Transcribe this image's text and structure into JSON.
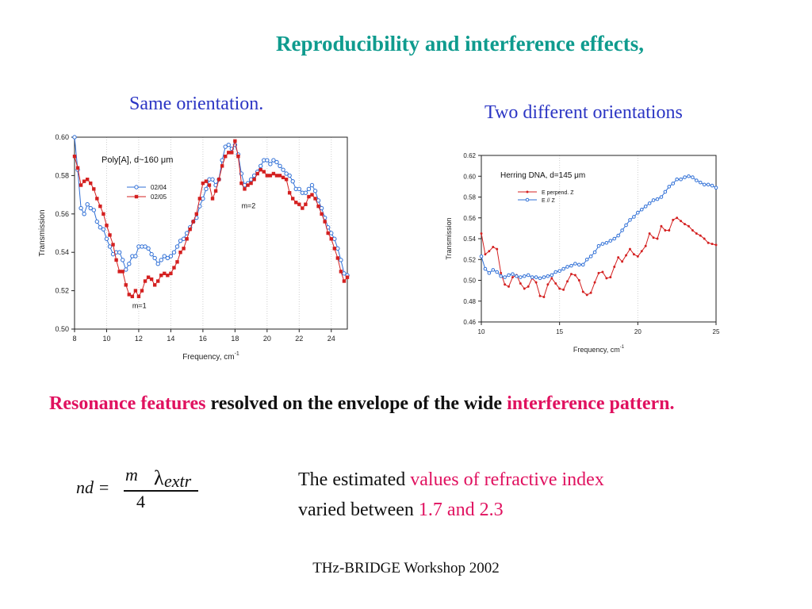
{
  "slide": {
    "title": "Reproducibility and interference effects,",
    "subtitle_left": "Same orientation.",
    "subtitle_right": "Two different orientations",
    "statement": {
      "part1": "Resonance features",
      "part2": " resolved on the envelope of the wide ",
      "part3": "interference pattern."
    },
    "formula": {
      "lhs": "nd =",
      "m": "m",
      "lambda": "λ",
      "sub": "extr",
      "den": "4"
    },
    "note": {
      "line1_a": "The estimated ",
      "line1_b": "values of refractive index",
      "line2_a": "varied between ",
      "line2_b": "1.7 and 2.3"
    },
    "footer": "THz-BRIDGE Workshop 2002",
    "colors": {
      "title": "#0f9b8e",
      "subtitle": "#2b35c4",
      "highlight": "#e0115f",
      "blue_series": "#2f6fd6",
      "red_series": "#d42020"
    }
  },
  "chart_data": [
    {
      "type": "line",
      "title": "Poly[A], d~160 μm",
      "xlabel": "Frequency, cm",
      "xlabel_sup": "-1",
      "ylabel": "Transmission",
      "xlim": [
        8,
        25
      ],
      "ylim": [
        0.5,
        0.6
      ],
      "xticks": [
        8,
        10,
        12,
        14,
        16,
        18,
        20,
        22,
        24
      ],
      "yticks": [
        0.5,
        0.52,
        0.54,
        0.56,
        0.58,
        0.6
      ],
      "grid": "vertical dotted",
      "legend": "upper-left",
      "annotations": [
        {
          "text": "m=1",
          "x": 11.6,
          "y": 0.511
        },
        {
          "text": "m=2",
          "x": 18.4,
          "y": 0.563
        }
      ],
      "series": [
        {
          "name": "02/04",
          "color": "#2f6fd6",
          "marker": "circle",
          "x": [
            8.0,
            8.2,
            8.4,
            8.6,
            8.8,
            9.0,
            9.2,
            9.4,
            9.6,
            9.8,
            10.0,
            10.2,
            10.4,
            10.6,
            10.8,
            11.0,
            11.2,
            11.4,
            11.6,
            11.8,
            12.0,
            12.2,
            12.4,
            12.6,
            12.8,
            13.0,
            13.2,
            13.4,
            13.6,
            13.8,
            14.0,
            14.2,
            14.4,
            14.6,
            14.8,
            15.0,
            15.2,
            15.4,
            15.6,
            15.8,
            16.0,
            16.2,
            16.4,
            16.6,
            16.8,
            17.0,
            17.2,
            17.4,
            17.6,
            17.8,
            18.0,
            18.2,
            18.4,
            18.6,
            18.8,
            19.0,
            19.2,
            19.4,
            19.6,
            19.8,
            20.0,
            20.2,
            20.4,
            20.6,
            20.8,
            21.0,
            21.2,
            21.4,
            21.6,
            21.8,
            22.0,
            22.2,
            22.4,
            22.6,
            22.8,
            23.0,
            23.2,
            23.4,
            23.6,
            23.8,
            24.0,
            24.2,
            24.4,
            24.6,
            24.8,
            25.0
          ],
          "y": [
            0.6,
            0.583,
            0.563,
            0.56,
            0.565,
            0.563,
            0.562,
            0.556,
            0.553,
            0.552,
            0.547,
            0.543,
            0.539,
            0.54,
            0.54,
            0.536,
            0.531,
            0.534,
            0.538,
            0.538,
            0.543,
            0.543,
            0.543,
            0.542,
            0.539,
            0.537,
            0.534,
            0.536,
            0.538,
            0.537,
            0.538,
            0.54,
            0.543,
            0.546,
            0.547,
            0.55,
            0.553,
            0.556,
            0.558,
            0.564,
            0.568,
            0.573,
            0.578,
            0.578,
            0.575,
            0.578,
            0.588,
            0.595,
            0.596,
            0.594,
            0.596,
            0.591,
            0.581,
            0.575,
            0.576,
            0.578,
            0.58,
            0.582,
            0.585,
            0.588,
            0.588,
            0.586,
            0.588,
            0.587,
            0.585,
            0.583,
            0.581,
            0.58,
            0.577,
            0.573,
            0.573,
            0.571,
            0.571,
            0.573,
            0.575,
            0.572,
            0.567,
            0.563,
            0.558,
            0.553,
            0.55,
            0.547,
            0.542,
            0.536,
            0.529,
            0.528
          ]
        },
        {
          "name": "02/05",
          "color": "#d42020",
          "marker": "square",
          "x": [
            8.0,
            8.2,
            8.4,
            8.6,
            8.8,
            9.0,
            9.2,
            9.4,
            9.6,
            9.8,
            10.0,
            10.2,
            10.4,
            10.6,
            10.8,
            11.0,
            11.2,
            11.4,
            11.6,
            11.8,
            12.0,
            12.2,
            12.4,
            12.6,
            12.8,
            13.0,
            13.2,
            13.4,
            13.6,
            13.8,
            14.0,
            14.2,
            14.4,
            14.6,
            14.8,
            15.0,
            15.2,
            15.4,
            15.6,
            15.8,
            16.0,
            16.2,
            16.4,
            16.6,
            16.8,
            17.0,
            17.2,
            17.4,
            17.6,
            17.8,
            18.0,
            18.2,
            18.4,
            18.6,
            18.8,
            19.0,
            19.2,
            19.4,
            19.6,
            19.8,
            20.0,
            20.2,
            20.4,
            20.6,
            20.8,
            21.0,
            21.2,
            21.4,
            21.6,
            21.8,
            22.0,
            22.2,
            22.4,
            22.6,
            22.8,
            23.0,
            23.2,
            23.4,
            23.6,
            23.8,
            24.0,
            24.2,
            24.4,
            24.6,
            24.8,
            25.0
          ],
          "y": [
            0.59,
            0.584,
            0.575,
            0.577,
            0.578,
            0.576,
            0.573,
            0.568,
            0.564,
            0.56,
            0.554,
            0.549,
            0.544,
            0.536,
            0.53,
            0.53,
            0.523,
            0.518,
            0.517,
            0.52,
            0.517,
            0.52,
            0.525,
            0.527,
            0.526,
            0.523,
            0.525,
            0.528,
            0.529,
            0.528,
            0.529,
            0.532,
            0.535,
            0.54,
            0.542,
            0.547,
            0.552,
            0.556,
            0.56,
            0.568,
            0.576,
            0.577,
            0.575,
            0.568,
            0.572,
            0.578,
            0.585,
            0.59,
            0.592,
            0.592,
            0.598,
            0.59,
            0.576,
            0.573,
            0.575,
            0.576,
            0.578,
            0.581,
            0.583,
            0.582,
            0.58,
            0.58,
            0.581,
            0.58,
            0.58,
            0.579,
            0.578,
            0.571,
            0.568,
            0.566,
            0.565,
            0.563,
            0.565,
            0.569,
            0.57,
            0.568,
            0.564,
            0.56,
            0.556,
            0.55,
            0.547,
            0.542,
            0.537,
            0.53,
            0.525,
            0.527
          ]
        }
      ]
    },
    {
      "type": "line",
      "title": "Herring DNA, d=145 μm",
      "xlabel": "Frequency, cm",
      "xlabel_sup": "-1",
      "ylabel": "Transmission",
      "xlim": [
        10,
        25
      ],
      "ylim": [
        0.46,
        0.62
      ],
      "xticks": [
        10,
        15,
        20,
        25
      ],
      "yticks": [
        0.46,
        0.48,
        0.5,
        0.52,
        0.54,
        0.56,
        0.58,
        0.6,
        0.62
      ],
      "grid": "vertical dotted",
      "legend": "upper-left",
      "series": [
        {
          "name": "E perpend. Z",
          "color": "#d42020",
          "marker": "dot",
          "x": [
            10.0,
            10.25,
            10.5,
            10.75,
            11.0,
            11.25,
            11.5,
            11.75,
            12.0,
            12.25,
            12.5,
            12.75,
            13.0,
            13.25,
            13.5,
            13.75,
            14.0,
            14.25,
            14.5,
            14.75,
            15.0,
            15.25,
            15.5,
            15.75,
            16.0,
            16.25,
            16.5,
            16.75,
            17.0,
            17.25,
            17.5,
            17.75,
            18.0,
            18.25,
            18.5,
            18.75,
            19.0,
            19.25,
            19.5,
            19.75,
            20.0,
            20.25,
            20.5,
            20.75,
            21.0,
            21.25,
            21.5,
            21.75,
            22.0,
            22.25,
            22.5,
            22.75,
            23.0,
            23.25,
            23.5,
            23.75,
            24.0,
            24.25,
            24.5,
            24.75,
            25.0
          ],
          "y": [
            0.545,
            0.525,
            0.528,
            0.532,
            0.53,
            0.507,
            0.496,
            0.494,
            0.503,
            0.505,
            0.497,
            0.492,
            0.494,
            0.502,
            0.498,
            0.485,
            0.484,
            0.496,
            0.502,
            0.497,
            0.492,
            0.491,
            0.499,
            0.506,
            0.505,
            0.5,
            0.489,
            0.486,
            0.488,
            0.498,
            0.507,
            0.508,
            0.502,
            0.503,
            0.513,
            0.522,
            0.518,
            0.524,
            0.53,
            0.525,
            0.523,
            0.528,
            0.533,
            0.545,
            0.541,
            0.54,
            0.552,
            0.548,
            0.548,
            0.558,
            0.56,
            0.557,
            0.554,
            0.552,
            0.548,
            0.545,
            0.543,
            0.54,
            0.536,
            0.535,
            0.534
          ]
        },
        {
          "name": "E // Z",
          "color": "#2f6fd6",
          "marker": "circle",
          "x": [
            10.0,
            10.25,
            10.5,
            10.75,
            11.0,
            11.25,
            11.5,
            11.75,
            12.0,
            12.25,
            12.5,
            12.75,
            13.0,
            13.25,
            13.5,
            13.75,
            14.0,
            14.25,
            14.5,
            14.75,
            15.0,
            15.25,
            15.5,
            15.75,
            16.0,
            16.25,
            16.5,
            16.75,
            17.0,
            17.25,
            17.5,
            17.75,
            18.0,
            18.25,
            18.5,
            18.75,
            19.0,
            19.25,
            19.5,
            19.75,
            20.0,
            20.25,
            20.5,
            20.75,
            21.0,
            21.25,
            21.5,
            21.75,
            22.0,
            22.25,
            22.5,
            22.75,
            23.0,
            23.25,
            23.5,
            23.75,
            24.0,
            24.25,
            24.5,
            24.75,
            25.0
          ],
          "y": [
            0.523,
            0.511,
            0.507,
            0.51,
            0.508,
            0.504,
            0.503,
            0.505,
            0.506,
            0.504,
            0.503,
            0.504,
            0.505,
            0.503,
            0.503,
            0.502,
            0.503,
            0.504,
            0.505,
            0.508,
            0.509,
            0.511,
            0.513,
            0.514,
            0.516,
            0.515,
            0.515,
            0.52,
            0.523,
            0.527,
            0.533,
            0.535,
            0.536,
            0.538,
            0.54,
            0.543,
            0.548,
            0.553,
            0.558,
            0.561,
            0.565,
            0.568,
            0.571,
            0.574,
            0.577,
            0.578,
            0.58,
            0.585,
            0.59,
            0.593,
            0.597,
            0.597,
            0.599,
            0.6,
            0.599,
            0.596,
            0.594,
            0.592,
            0.592,
            0.591,
            0.589
          ]
        }
      ]
    }
  ]
}
